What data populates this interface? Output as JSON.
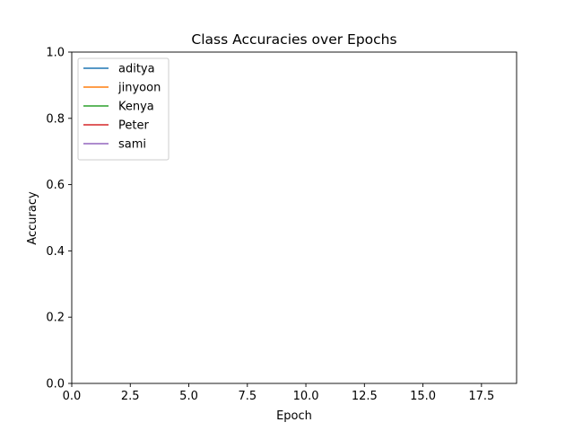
{
  "chart_data": {
    "type": "line",
    "title": "Class Accuracies over Epochs",
    "xlabel": "Epoch",
    "ylabel": "Accuracy",
    "xlim": [
      0,
      19
    ],
    "ylim": [
      0,
      1
    ],
    "x_ticks": [
      0,
      2.5,
      5,
      7.5,
      10,
      12.5,
      15,
      17.5
    ],
    "x_tick_labels": [
      "0.0",
      "2.5",
      "5.0",
      "7.5",
      "10.0",
      "12.5",
      "15.0",
      "17.5"
    ],
    "y_ticks": [
      0,
      0.2,
      0.4,
      0.6,
      0.8,
      1.0
    ],
    "y_tick_labels": [
      "0.0",
      "0.2",
      "0.4",
      "0.6",
      "0.8",
      "1.0"
    ],
    "grid": false,
    "legend_position": "upper-left",
    "series": [
      {
        "name": "aditya",
        "color": "#1f77b4",
        "x": [],
        "y": []
      },
      {
        "name": "jinyoon",
        "color": "#ff7f0e",
        "x": [],
        "y": []
      },
      {
        "name": "Kenya",
        "color": "#2ca02c",
        "x": [],
        "y": []
      },
      {
        "name": "Peter",
        "color": "#d62728",
        "x": [],
        "y": []
      },
      {
        "name": "sami",
        "color": "#9467bd",
        "x": [],
        "y": []
      }
    ]
  }
}
